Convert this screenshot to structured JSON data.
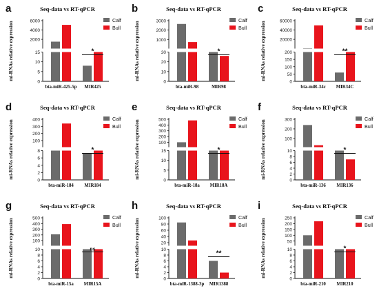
{
  "panels": [
    {
      "letter": "a",
      "title": "Seq-data vs RT-qPCR",
      "ylabel": "mi-RNAs relative expression",
      "categories": [
        "bta-miR-425-5p",
        "MIR425"
      ],
      "series": [
        {
          "name": "Calf",
          "values": [
            1500,
            8
          ]
        },
        {
          "name": "Bull",
          "values": [
            5100,
            15
          ]
        }
      ],
      "axis_upper": {
        "ticks": [
          "2000",
          "4000",
          "6000"
        ]
      },
      "axis_lower": {
        "ticks": [
          "0",
          "5",
          "10",
          "15"
        ]
      },
      "significance": "*"
    },
    {
      "letter": "b",
      "title": "Seq-data vs RT-qPCR",
      "ylabel": "mi-RNAs relative expression",
      "categories": [
        "bta-miR-98",
        "MIR98"
      ],
      "series": [
        {
          "name": "Calf",
          "values": [
            2650,
            30
          ]
        },
        {
          "name": "Bull",
          "values": [
            720,
            26
          ]
        }
      ],
      "axis_upper": {
        "ticks": [
          "1000",
          "2000",
          "3000"
        ]
      },
      "axis_lower": {
        "ticks": [
          "0",
          "10",
          "20",
          "30"
        ]
      },
      "significance": "*"
    },
    {
      "letter": "c",
      "title": "Seq-data vs RT-qPCR",
      "ylabel": "mi-RNAs relative expression",
      "categories": [
        "bta-miR-34c",
        "MIR34C"
      ],
      "series": [
        {
          "name": "Calf",
          "values": [
            1000,
            60
          ]
        },
        {
          "name": "Bull",
          "values": [
            50000,
            200
          ]
        }
      ],
      "axis_upper": {
        "ticks": [
          "20000",
          "40000",
          "60000"
        ]
      },
      "axis_lower": {
        "ticks": [
          "0",
          "50",
          "100",
          "150",
          "200"
        ]
      },
      "significance": "**"
    },
    {
      "letter": "d",
      "title": "Seq-data vs RT-qPCR",
      "ylabel": "mi-RNAs relative expression",
      "categories": [
        "bta-miR-184",
        "MIR184"
      ],
      "series": [
        {
          "name": "Calf",
          "values": [
            8,
            7.2
          ]
        },
        {
          "name": "Bull",
          "values": [
            340,
            8
          ]
        }
      ],
      "axis_upper": {
        "ticks": [
          "100",
          "200",
          "300",
          "400"
        ]
      },
      "axis_lower": {
        "ticks": [
          "0",
          "2",
          "4",
          "6",
          "8"
        ]
      },
      "significance": "*"
    },
    {
      "letter": "e",
      "title": "Seq-data vs RT-qPCR",
      "ylabel": "mi-RNAs relative expression",
      "categories": [
        "bta-miR-18a",
        "MIR18A"
      ],
      "series": [
        {
          "name": "Calf",
          "values": [
            100,
            15
          ]
        },
        {
          "name": "Bull",
          "values": [
            480,
            15
          ]
        }
      ],
      "axis_upper": {
        "ticks": [
          "100",
          "200",
          "300",
          "400",
          "500"
        ]
      },
      "axis_lower": {
        "ticks": [
          "0",
          "5",
          "10",
          "15"
        ]
      },
      "significance": "*"
    },
    {
      "letter": "f",
      "title": "Seq-data vs RT-qPCR",
      "ylabel": "mi-RNAs relative expression",
      "categories": [
        "bta-miR-136",
        "MIR136"
      ],
      "series": [
        {
          "name": "Calf",
          "values": [
            240,
            10
          ]
        },
        {
          "name": "Bull",
          "values": [
            30,
            7
          ]
        }
      ],
      "axis_upper": {
        "ticks": [
          "100",
          "200",
          "300"
        ]
      },
      "axis_lower": {
        "ticks": [
          "0",
          "2",
          "4",
          "6",
          "8",
          "10"
        ]
      },
      "significance": "*"
    },
    {
      "letter": "g",
      "title": "Seq-data vs RT-qPCR",
      "ylabel": "mi-RNAs relative expression",
      "categories": [
        "bta-miR-15a",
        "MIR15A"
      ],
      "series": [
        {
          "name": "Calf",
          "values": [
            210,
            10
          ]
        },
        {
          "name": "Bull",
          "values": [
            390,
            10
          ]
        }
      ],
      "axis_upper": {
        "ticks": [
          "100",
          "200",
          "300",
          "400",
          "500"
        ]
      },
      "axis_lower": {
        "ticks": [
          "0",
          "2",
          "4",
          "6",
          "8",
          "10"
        ]
      },
      "significance": "ns"
    },
    {
      "letter": "h",
      "title": "Seq-data vs RT-qPCR",
      "ylabel": "mi-RNAs relative expression",
      "categories": [
        "bta-miR-1388-3p",
        "MIR1388"
      ],
      "series": [
        {
          "name": "Calf",
          "values": [
            85,
            6
          ]
        },
        {
          "name": "Bull",
          "values": [
            27,
            2
          ]
        }
      ],
      "axis_upper": {
        "ticks": [
          "20",
          "40",
          "60",
          "80",
          "100"
        ]
      },
      "axis_lower": {
        "ticks": [
          "0",
          "2",
          "4",
          "6",
          "8",
          "10"
        ]
      },
      "significance": "**"
    },
    {
      "letter": "i",
      "title": "Seq-data vs RT-qPCR",
      "ylabel": "mi-RNAs relative expression",
      "categories": [
        "bta-miR-210",
        "MIR210"
      ],
      "series": [
        {
          "name": "Calf",
          "values": [
            100,
            10
          ]
        },
        {
          "name": "Bull",
          "values": [
            220,
            10
          ]
        }
      ],
      "axis_upper": {
        "ticks": [
          "50",
          "100",
          "150",
          "200",
          "250"
        ]
      },
      "axis_lower": {
        "ticks": [
          "0",
          "2",
          "4",
          "6",
          "8",
          "10"
        ]
      },
      "significance": "*"
    }
  ],
  "colors": {
    "calf": "#6b6b6b",
    "bull": "#e8141c"
  },
  "chart_data": [
    {
      "type": "bar",
      "title": "Seq-data vs RT-qPCR",
      "ylabel": "mi-RNAs relative expression",
      "categories": [
        "bta-miR-425-5p",
        "MIR425"
      ],
      "series": [
        {
          "name": "Calf",
          "values": [
            1500,
            8
          ]
        },
        {
          "name": "Bull",
          "values": [
            5100,
            15
          ]
        }
      ],
      "ylim_lower": [
        0,
        15
      ],
      "ylim_upper": [
        15,
        6000
      ]
    },
    {
      "type": "bar",
      "title": "Seq-data vs RT-qPCR",
      "ylabel": "mi-RNAs relative expression",
      "categories": [
        "bta-miR-98",
        "MIR98"
      ],
      "series": [
        {
          "name": "Calf",
          "values": [
            2650,
            30
          ]
        },
        {
          "name": "Bull",
          "values": [
            720,
            26
          ]
        }
      ],
      "ylim_lower": [
        0,
        30
      ],
      "ylim_upper": [
        30,
        3000
      ]
    },
    {
      "type": "bar",
      "title": "Seq-data vs RT-qPCR",
      "ylabel": "mi-RNAs relative expression",
      "categories": [
        "bta-miR-34c",
        "MIR34C"
      ],
      "series": [
        {
          "name": "Calf",
          "values": [
            1000,
            60
          ]
        },
        {
          "name": "Bull",
          "values": [
            50000,
            200
          ]
        }
      ],
      "ylim_lower": [
        0,
        200
      ],
      "ylim_upper": [
        200,
        60000
      ]
    },
    {
      "type": "bar",
      "title": "Seq-data vs RT-qPCR",
      "ylabel": "mi-RNAs relative expression",
      "categories": [
        "bta-miR-184",
        "MIR184"
      ],
      "series": [
        {
          "name": "Calf",
          "values": [
            8,
            7.2
          ]
        },
        {
          "name": "Bull",
          "values": [
            340,
            8
          ]
        }
      ],
      "ylim_lower": [
        0,
        8
      ],
      "ylim_upper": [
        8,
        400
      ]
    },
    {
      "type": "bar",
      "title": "Seq-data vs RT-qPCR",
      "ylabel": "mi-RNAs relative expression",
      "categories": [
        "bta-miR-18a",
        "MIR18A"
      ],
      "series": [
        {
          "name": "Calf",
          "values": [
            100,
            15
          ]
        },
        {
          "name": "Bull",
          "values": [
            480,
            15
          ]
        }
      ],
      "ylim_lower": [
        0,
        15
      ],
      "ylim_upper": [
        15,
        500
      ]
    },
    {
      "type": "bar",
      "title": "Seq-data vs RT-qPCR",
      "ylabel": "mi-RNAs relative expression",
      "categories": [
        "bta-miR-136",
        "MIR136"
      ],
      "series": [
        {
          "name": "Calf",
          "values": [
            240,
            10
          ]
        },
        {
          "name": "Bull",
          "values": [
            30,
            7
          ]
        }
      ],
      "ylim_lower": [
        0,
        10
      ],
      "ylim_upper": [
        10,
        300
      ]
    },
    {
      "type": "bar",
      "title": "Seq-data vs RT-qPCR",
      "ylabel": "mi-RNAs relative expression",
      "categories": [
        "bta-miR-15a",
        "MIR15A"
      ],
      "series": [
        {
          "name": "Calf",
          "values": [
            210,
            10
          ]
        },
        {
          "name": "Bull",
          "values": [
            390,
            10
          ]
        }
      ],
      "ylim_lower": [
        0,
        10
      ],
      "ylim_upper": [
        10,
        500
      ]
    },
    {
      "type": "bar",
      "title": "Seq-data vs RT-qPCR",
      "ylabel": "mi-RNAs relative expression",
      "categories": [
        "bta-miR-1388-3p",
        "MIR1388"
      ],
      "series": [
        {
          "name": "Calf",
          "values": [
            85,
            6
          ]
        },
        {
          "name": "Bull",
          "values": [
            27,
            2
          ]
        }
      ],
      "ylim_lower": [
        0,
        10
      ],
      "ylim_upper": [
        10,
        100
      ]
    },
    {
      "type": "bar",
      "title": "Seq-data vs RT-qPCR",
      "ylabel": "mi-RNAs relative expression",
      "categories": [
        "bta-miR-210",
        "MIR210"
      ],
      "series": [
        {
          "name": "Calf",
          "values": [
            100,
            10
          ]
        },
        {
          "name": "Bull",
          "values": [
            220,
            10
          ]
        }
      ],
      "ylim_lower": [
        0,
        10
      ],
      "ylim_upper": [
        10,
        250
      ]
    }
  ]
}
